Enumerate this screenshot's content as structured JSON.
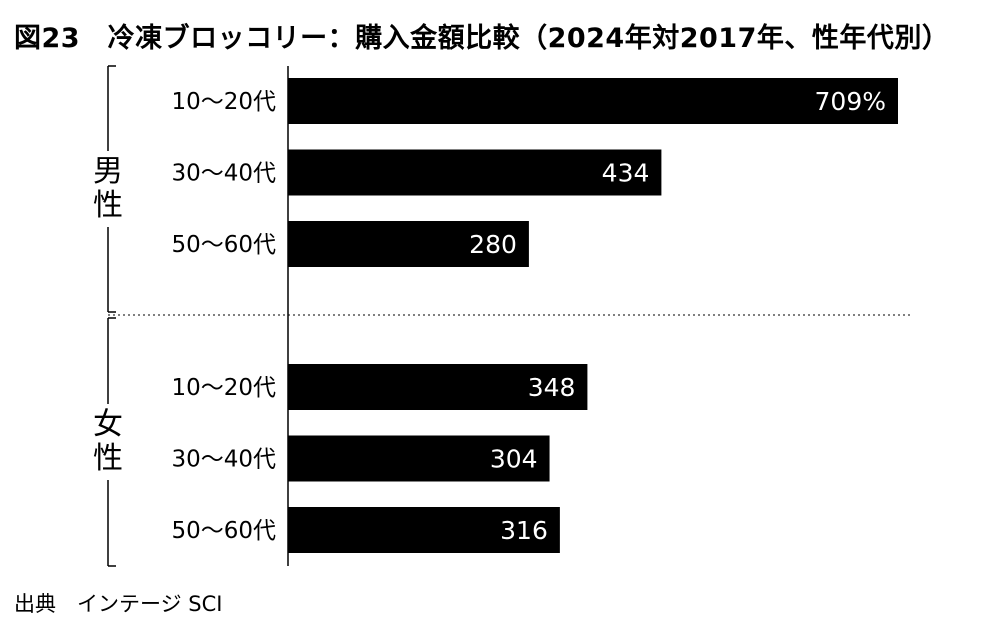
{
  "title": "図23　冷凍ブロッコリー：購入金額比較（2024年対2017年、性年代別）",
  "source": "出典　インテージ SCI",
  "chart_data": {
    "type": "bar",
    "orientation": "horizontal",
    "title": "図23　冷凍ブロッコリー：購入金額比較（2024年対2017年、性年代別）",
    "groups": [
      {
        "name": "男性",
        "categories": [
          "10〜20代",
          "30〜40代",
          "50〜60代"
        ],
        "values": [
          709,
          434,
          280
        ],
        "labels": [
          "709%",
          "434",
          "280"
        ]
      },
      {
        "name": "女性",
        "categories": [
          "10〜20代",
          "30〜40代",
          "50〜60代"
        ],
        "values": [
          348,
          304,
          316
        ],
        "labels": [
          "348",
          "304",
          "316"
        ]
      }
    ],
    "unit": "%",
    "xlim": [
      0,
      709
    ],
    "bar_color": "#000000",
    "label_color": "#ffffff",
    "group_separator": "dotted",
    "grid": false
  }
}
